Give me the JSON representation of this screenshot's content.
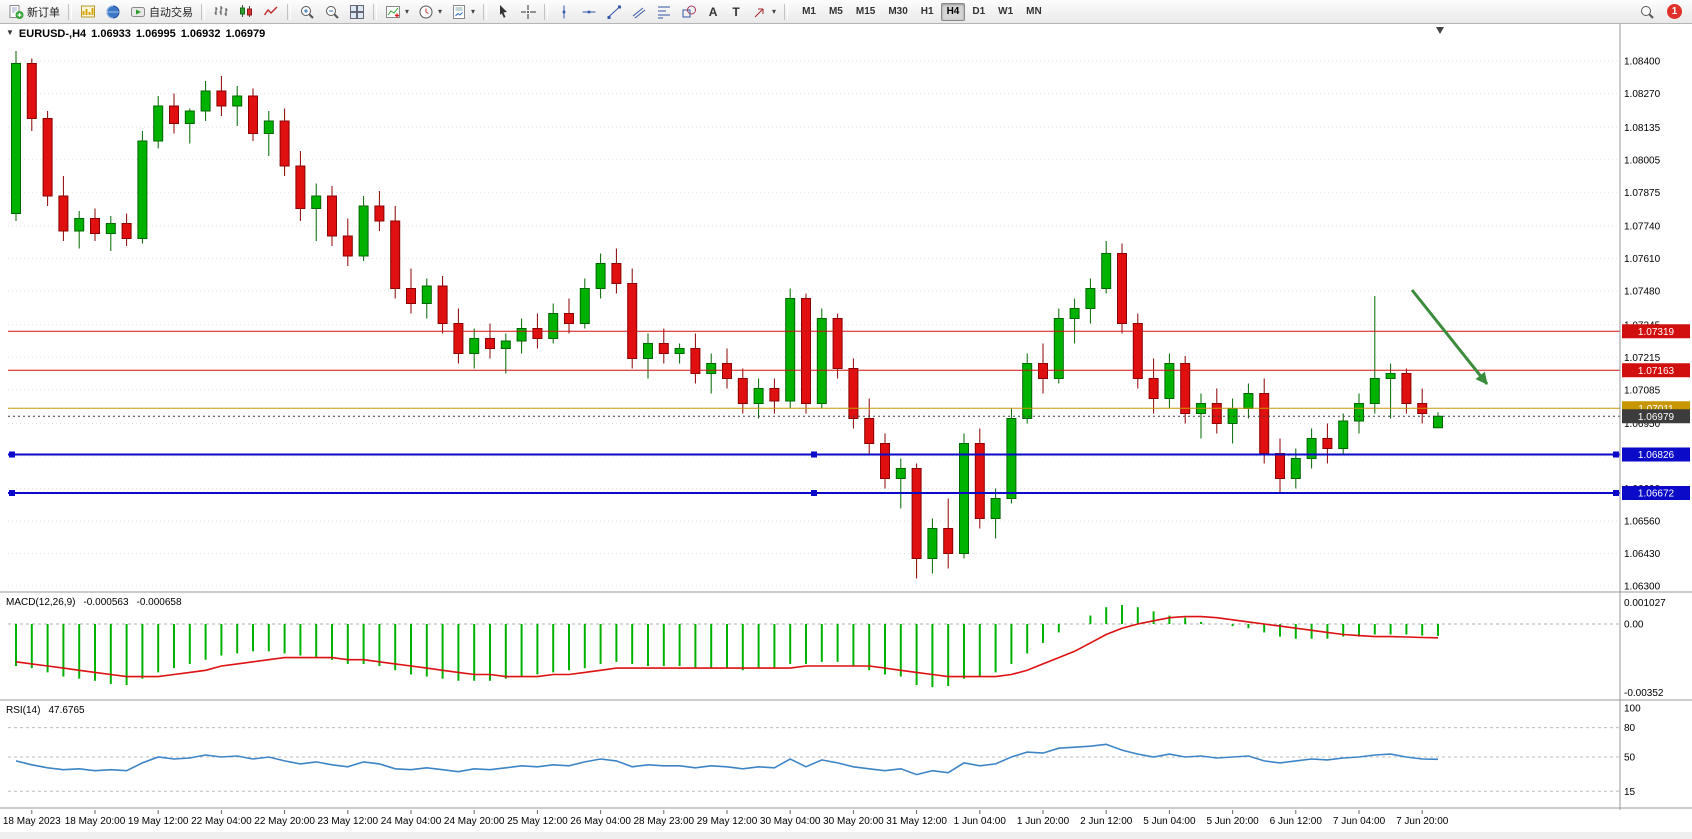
{
  "toolbar": {
    "new_order_label": "新订单",
    "autotrading_label": "自动交易",
    "timeframes": [
      "M1",
      "M5",
      "M15",
      "M30",
      "H1",
      "H4",
      "D1",
      "W1",
      "MN"
    ],
    "active_timeframe": "H4",
    "notification_count": "1",
    "icon_names": [
      "new-order-icon",
      "chart-profiles-icon",
      "market-watch-icon",
      "autotrading-icon",
      "bar-chart-icon",
      "candlestick-chart-icon",
      "line-chart-icon",
      "zoom-in-icon",
      "zoom-out-icon",
      "tile-windows-icon",
      "indicators-icon",
      "periods-icon",
      "templates-icon",
      "cursor-icon",
      "crosshair-icon",
      "vertical-line-icon",
      "horizontal-line-icon",
      "trendline-icon",
      "channel-icon",
      "fibonacci-icon",
      "shapes-icon",
      "text-icon",
      "label-icon",
      "arrows-icon",
      "search-icon"
    ]
  },
  "chart_header": {
    "symbol": "EURUSD-,H4",
    "open": "1.06933",
    "high": "1.06995",
    "low": "1.06932",
    "close": "1.06979"
  },
  "chart_data": {
    "type": "candlestick",
    "symbol": "EURUSD-",
    "timeframe": "H4",
    "price_axis_labels": [
      "1.08400",
      "1.08270",
      "1.08135",
      "1.08005",
      "1.07875",
      "1.07740",
      "1.07610",
      "1.07480",
      "1.07345",
      "1.07215",
      "1.07085",
      "1.06950",
      "1.06820",
      "1.06690",
      "1.06560",
      "1.06430",
      "1.06300"
    ],
    "time_labels": [
      "18 May 2023",
      "18 May 20:00",
      "19 May 12:00",
      "22 May 04:00",
      "22 May 20:00",
      "23 May 12:00",
      "24 May 04:00",
      "24 May 20:00",
      "25 May 12:00",
      "26 May 04:00",
      "28 May 23:00",
      "29 May 12:00",
      "30 May 04:00",
      "30 May 20:00",
      "31 May 12:00",
      "1 Jun 04:00",
      "1 Jun 20:00",
      "2 Jun 12:00",
      "5 Jun 04:00",
      "5 Jun 20:00",
      "6 Jun 12:00",
      "7 Jun 04:00",
      "7 Jun 20:00"
    ],
    "candles": [
      [
        1.0779,
        1.0844,
        1.0776,
        1.0839
      ],
      [
        1.0839,
        1.0841,
        1.0812,
        1.0817
      ],
      [
        1.0817,
        1.082,
        1.0782,
        1.0786
      ],
      [
        1.0786,
        1.0794,
        1.0768,
        1.0772
      ],
      [
        1.0772,
        1.078,
        1.0765,
        1.0777
      ],
      [
        1.0777,
        1.0781,
        1.0768,
        1.0771
      ],
      [
        1.0771,
        1.0778,
        1.0764,
        1.0775
      ],
      [
        1.0775,
        1.0779,
        1.0766,
        1.0769
      ],
      [
        1.0769,
        1.0812,
        1.0767,
        1.0808
      ],
      [
        1.0808,
        1.0826,
        1.0805,
        1.0822
      ],
      [
        1.0822,
        1.0827,
        1.0811,
        1.0815
      ],
      [
        1.0815,
        1.0821,
        1.0807,
        1.082
      ],
      [
        1.082,
        1.0832,
        1.0816,
        1.0828
      ],
      [
        1.0828,
        1.0834,
        1.0818,
        1.0822
      ],
      [
        1.0822,
        1.083,
        1.0814,
        1.0826
      ],
      [
        1.0826,
        1.0829,
        1.0808,
        1.0811
      ],
      [
        1.0811,
        1.082,
        1.0802,
        1.0816
      ],
      [
        1.0816,
        1.0821,
        1.0794,
        1.0798
      ],
      [
        1.0798,
        1.0804,
        1.0776,
        1.0781
      ],
      [
        1.0781,
        1.0791,
        1.0768,
        1.0786
      ],
      [
        1.0786,
        1.079,
        1.0766,
        1.077
      ],
      [
        1.077,
        1.0777,
        1.0758,
        1.0762
      ],
      [
        1.0762,
        1.0786,
        1.076,
        1.0782
      ],
      [
        1.0782,
        1.0788,
        1.0772,
        1.0776
      ],
      [
        1.0776,
        1.0782,
        1.0745,
        1.0749
      ],
      [
        1.0749,
        1.0757,
        1.0739,
        1.0743
      ],
      [
        1.0743,
        1.0753,
        1.0737,
        1.075
      ],
      [
        1.075,
        1.0754,
        1.0731,
        1.0735
      ],
      [
        1.0735,
        1.0741,
        1.0719,
        1.0723
      ],
      [
        1.0723,
        1.0733,
        1.0717,
        1.0729
      ],
      [
        1.0729,
        1.0735,
        1.0721,
        1.0725
      ],
      [
        1.0725,
        1.0731,
        1.0715,
        1.0728
      ],
      [
        1.0728,
        1.0737,
        1.0723,
        1.0733
      ],
      [
        1.0733,
        1.0739,
        1.0725,
        1.0729
      ],
      [
        1.0729,
        1.0743,
        1.0727,
        1.0739
      ],
      [
        1.0739,
        1.0745,
        1.0731,
        1.0735
      ],
      [
        1.0735,
        1.0753,
        1.0733,
        1.0749
      ],
      [
        1.0749,
        1.0763,
        1.0745,
        1.0759
      ],
      [
        1.0759,
        1.0765,
        1.0747,
        1.0751
      ],
      [
        1.0751,
        1.0757,
        1.0717,
        1.0721
      ],
      [
        1.0721,
        1.0731,
        1.0713,
        1.0727
      ],
      [
        1.0727,
        1.0733,
        1.0719,
        1.0723
      ],
      [
        1.0723,
        1.0727,
        1.0719,
        1.0725
      ],
      [
        1.0725,
        1.0731,
        1.0711,
        1.0715
      ],
      [
        1.0715,
        1.0723,
        1.0707,
        1.0719
      ],
      [
        1.0719,
        1.0725,
        1.0709,
        1.0713
      ],
      [
        1.0713,
        1.0717,
        1.0699,
        1.0703
      ],
      [
        1.0703,
        1.0713,
        1.0697,
        1.0709
      ],
      [
        1.0709,
        1.0713,
        1.0699,
        1.0704
      ],
      [
        1.0704,
        1.0749,
        1.0701,
        1.0745
      ],
      [
        1.0745,
        1.0747,
        1.0699,
        1.0703
      ],
      [
        1.0703,
        1.0741,
        1.0701,
        1.0737
      ],
      [
        1.0737,
        1.0739,
        1.0713,
        1.0717
      ],
      [
        1.0717,
        1.0721,
        1.0693,
        1.0697
      ],
      [
        1.0697,
        1.0705,
        1.0683,
        1.0687
      ],
      [
        1.0687,
        1.0691,
        1.0669,
        1.0673
      ],
      [
        1.0673,
        1.0681,
        1.0661,
        1.0677
      ],
      [
        1.0677,
        1.0679,
        1.0633,
        1.0641
      ],
      [
        1.0641,
        1.0657,
        1.0635,
        1.0653
      ],
      [
        1.0653,
        1.0665,
        1.0637,
        1.0643
      ],
      [
        1.0643,
        1.0691,
        1.0641,
        1.0687
      ],
      [
        1.0687,
        1.0693,
        1.0653,
        1.0657
      ],
      [
        1.0657,
        1.0669,
        1.0649,
        1.0665
      ],
      [
        1.0665,
        1.0701,
        1.0663,
        1.0697
      ],
      [
        1.0697,
        1.0723,
        1.0695,
        1.0719
      ],
      [
        1.0719,
        1.0727,
        1.0707,
        1.0713
      ],
      [
        1.0713,
        1.0741,
        1.0711,
        1.0737
      ],
      [
        1.0737,
        1.0745,
        1.0727,
        1.0741
      ],
      [
        1.0741,
        1.0753,
        1.0735,
        1.0749
      ],
      [
        1.0749,
        1.0768,
        1.0747,
        1.0763
      ],
      [
        1.0763,
        1.0767,
        1.0731,
        1.0735
      ],
      [
        1.0735,
        1.0739,
        1.0709,
        1.0713
      ],
      [
        1.0713,
        1.0721,
        1.0699,
        1.0705
      ],
      [
        1.0705,
        1.0723,
        1.0701,
        1.0719
      ],
      [
        1.0719,
        1.0722,
        1.0695,
        1.0699
      ],
      [
        1.0699,
        1.0707,
        1.0689,
        1.0703
      ],
      [
        1.0703,
        1.0709,
        1.0691,
        1.0695
      ],
      [
        1.0695,
        1.0705,
        1.0687,
        1.0701
      ],
      [
        1.0701,
        1.0711,
        1.0697,
        1.0707
      ],
      [
        1.0707,
        1.0713,
        1.0679,
        1.0683
      ],
      [
        1.0683,
        1.0689,
        1.0667,
        1.0673
      ],
      [
        1.0673,
        1.0685,
        1.0669,
        1.0681
      ],
      [
        1.0681,
        1.0693,
        1.0677,
        1.0689
      ],
      [
        1.0689,
        1.0695,
        1.0679,
        1.0685
      ],
      [
        1.0685,
        1.0699,
        1.0683,
        1.0696
      ],
      [
        1.0696,
        1.0707,
        1.0691,
        1.0703
      ],
      [
        1.0703,
        1.0746,
        1.0699,
        1.0713
      ],
      [
        1.0713,
        1.0719,
        1.0697,
        1.0715
      ],
      [
        1.0715,
        1.0717,
        1.0699,
        1.0703
      ],
      [
        1.0703,
        1.0709,
        1.0695,
        1.0699
      ],
      [
        1.06933,
        1.06995,
        1.06932,
        1.06979
      ]
    ],
    "h_lines": [
      {
        "label": "1.07319",
        "price": 1.07319,
        "color": "#d20f0f",
        "width": 1,
        "type": "resistance-line-1"
      },
      {
        "label": "1.07163",
        "price": 1.07163,
        "color": "#d20f0f",
        "width": 1,
        "type": "resistance-line-2"
      },
      {
        "label": "1.07011",
        "price": 1.07011,
        "color": "#c89600",
        "width": 1,
        "type": "pivot-line"
      },
      {
        "label": "1.06979",
        "price": 1.06979,
        "color": "#3c3c3c",
        "width": 1,
        "style": "dotted",
        "type": "bid-price-line"
      },
      {
        "label": "1.06826",
        "price": 1.06826,
        "color": "#0a0ac8",
        "width": 2,
        "handles": true,
        "type": "support-line-1"
      },
      {
        "label": "1.06672",
        "price": 1.06672,
        "color": "#0a0ac8",
        "width": 2,
        "handles": true,
        "type": "support-line-2"
      }
    ],
    "annotation_arrow": {
      "from": [
        1412,
        266
      ],
      "to": [
        1487,
        360
      ],
      "color": "#3a8c3a"
    },
    "macd": {
      "label": "MACD(12,26,9)",
      "value_main": "-0.000563",
      "value_signal": "-0.000658",
      "axis_labels": [
        "0.001027",
        "0.00",
        "-0.00352"
      ],
      "scale": 0.0001,
      "histogram": [
        -20,
        -21,
        -23,
        -25,
        -26,
        -27,
        -28.5,
        -29,
        -26,
        -23,
        -21,
        -19,
        -17,
        -15,
        -14,
        -13,
        -13,
        -14,
        -15,
        -16,
        -17,
        -19,
        -19,
        -20,
        -22,
        -24,
        -25,
        -26,
        -27,
        -27,
        -27,
        -26,
        -25,
        -24,
        -23,
        -22,
        -21,
        -19,
        -18,
        -19,
        -20,
        -20,
        -20,
        -21,
        -21,
        -21,
        -22,
        -21,
        -21,
        -19,
        -19,
        -18,
        -18,
        -20,
        -22,
        -24,
        -25,
        -29,
        -30,
        -29.5,
        -26,
        -25,
        -23,
        -19,
        -14,
        -9,
        -4,
        0,
        4,
        8,
        9,
        8,
        6,
        4,
        3,
        1,
        0,
        -1,
        -2,
        -4,
        -6,
        -7,
        -7,
        -7,
        -6,
        -6,
        -5,
        -5,
        -5,
        -5.5,
        -5.63
      ],
      "signal": [
        -18,
        -19,
        -20,
        -21,
        -22,
        -23,
        -24,
        -25,
        -25,
        -25,
        -24,
        -23,
        -22,
        -20,
        -19,
        -18,
        -17,
        -16,
        -16,
        -16,
        -16,
        -17,
        -17,
        -18,
        -19,
        -20,
        -21,
        -22,
        -23,
        -24,
        -24,
        -25,
        -25,
        -25,
        -24,
        -24,
        -23,
        -22,
        -21,
        -21,
        -21,
        -21,
        -21,
        -21,
        -21,
        -21,
        -21,
        -21,
        -21,
        -21,
        -20,
        -20,
        -20,
        -20,
        -20,
        -21,
        -22,
        -23,
        -24,
        -25,
        -25,
        -25,
        -25,
        -24,
        -22,
        -19,
        -16,
        -13,
        -9,
        -5,
        -2,
        0,
        1.5,
        3,
        3.5,
        3.5,
        3,
        2,
        1,
        0,
        -1,
        -2,
        -3,
        -4,
        -5,
        -5.5,
        -6,
        -6,
        -6.2,
        -6.4,
        -6.58
      ]
    },
    "rsi": {
      "label": "RSI(14)",
      "value": "47.6765",
      "axis_labels": [
        "100",
        "80",
        "50",
        "15"
      ],
      "levels": [
        80,
        50,
        15
      ],
      "values": [
        46,
        42,
        39,
        37,
        38,
        36,
        37,
        36,
        44,
        50,
        48,
        49,
        52,
        50,
        51,
        48,
        50,
        46,
        43,
        45,
        42,
        40,
        45,
        43,
        38,
        37,
        39,
        37,
        35,
        38,
        37,
        39,
        41,
        40,
        42,
        41,
        45,
        48,
        46,
        40,
        42,
        41,
        41,
        39,
        41,
        40,
        38,
        40,
        39,
        48,
        40,
        47,
        44,
        40,
        38,
        36,
        38,
        32,
        36,
        34,
        44,
        41,
        43,
        50,
        55,
        54,
        59,
        60,
        61,
        63,
        57,
        53,
        50,
        53,
        50,
        51,
        49,
        50,
        51,
        46,
        44,
        46,
        48,
        47,
        49,
        50,
        52,
        53,
        50,
        48,
        47.68
      ]
    },
    "colors": {
      "up": "#00b200",
      "up_border": "#006600",
      "down": "#e01010",
      "down_border": "#8b0000",
      "macd_histogram": "#00b200",
      "macd_signal": "#dd1111",
      "rsi_line": "#3d85c6",
      "grid": "#e2e2e2"
    }
  }
}
